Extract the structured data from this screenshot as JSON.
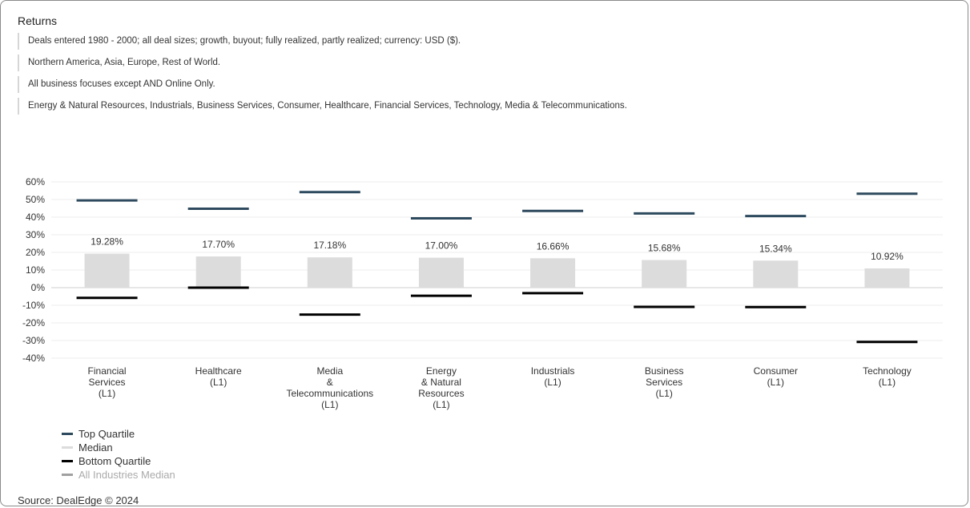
{
  "title": "Returns",
  "filters": [
    "Deals entered 1980 - 2000; all deal sizes; growth, buyout; fully realized, partly realized; currency: USD ($).",
    "Northern America, Asia, Europe, Rest of World.",
    "All business focuses except AND Online Only.",
    "Energy & Natural Resources, Industrials, Business Services, Consumer, Healthcare, Financial Services, Technology, Media & Telecommunications."
  ],
  "legend": [
    {
      "label": "Top Quartile",
      "color": "#2e4a5e",
      "muted": false
    },
    {
      "label": "Median",
      "color": "#dcdcdc",
      "muted": false
    },
    {
      "label": "Bottom Quartile",
      "color": "#000000",
      "muted": false
    },
    {
      "label": "All Industries Median",
      "color": "#a0a0a0",
      "muted": true
    }
  ],
  "source": "Source: DealEdge © 2024",
  "chart_data": {
    "type": "bar",
    "categories": [
      [
        "Financial",
        "Services",
        "(L1)"
      ],
      [
        "Healthcare",
        "(L1)"
      ],
      [
        "Media",
        "&",
        "Telecommunications",
        "(L1)"
      ],
      [
        "Energy",
        "& Natural",
        "Resources",
        "(L1)"
      ],
      [
        "Industrials",
        "(L1)"
      ],
      [
        "Business",
        "Services",
        "(L1)"
      ],
      [
        "Consumer",
        "(L1)"
      ],
      [
        "Technology",
        "(L1)"
      ]
    ],
    "series": [
      {
        "name": "Median",
        "values": [
          19.28,
          17.7,
          17.18,
          17.0,
          16.66,
          15.68,
          15.34,
          10.92
        ],
        "color": "#dcdcdc"
      },
      {
        "name": "Top Quartile",
        "values": [
          49.5,
          44.8,
          54.2,
          39.3,
          43.5,
          42.1,
          40.6,
          53.3
        ],
        "color": "#2e4a5e"
      },
      {
        "name": "Bottom Quartile",
        "values": [
          -5.8,
          0,
          -15.3,
          -4.6,
          -3.1,
          -10.9,
          -11,
          -30.8
        ],
        "color": "#000000"
      }
    ],
    "data_labels": [
      "19.28%",
      "17.70%",
      "17.18%",
      "17.00%",
      "16.66%",
      "15.68%",
      "15.34%",
      "10.92%"
    ],
    "yticks": [
      "60%",
      "50%",
      "40%",
      "30%",
      "20%",
      "10%",
      "0%",
      "-10%",
      "-20%",
      "-30%",
      "-40%"
    ],
    "ylim": [
      -40,
      60
    ],
    "grid": true
  }
}
